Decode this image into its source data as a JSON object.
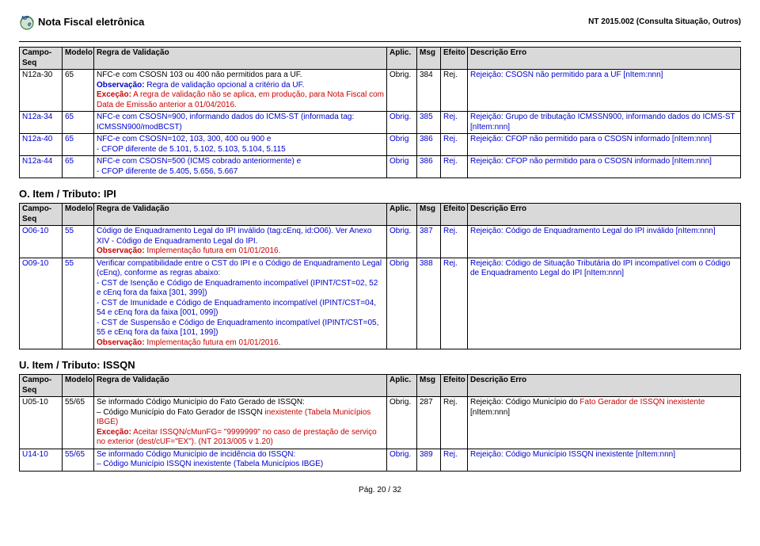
{
  "header": {
    "title": "Nota Fiscal eletrônica",
    "subtitle": "NT 2015.002 (Consulta Situação, Outros)"
  },
  "table1": {
    "headers": [
      "Campo-Seq",
      "Modelo",
      "Regra de Validação",
      "Aplic.",
      "Msg",
      "Efeito",
      "Descrição Erro"
    ],
    "rows": [
      {
        "seq": "N12a-30",
        "mod": "65",
        "reg": "NFC-e com CSOSN 103 ou 400 não permitidos para a UF.\nObservação: Regra de validação opcional a critério da UF.\nExceção: A regra de validação não se aplica, em produção, para Nota Fiscal com Data de Emissão anterior a 01/04/2016.",
        "apl": "Obrig.",
        "msg": "384",
        "efe": "Rej.",
        "desc": "Rejeição: CSOSN não permitido para a UF [nItem:nnn]",
        "reg_style": "black-blue-red",
        "desc_style": "blue"
      },
      {
        "seq": "N12a-34",
        "mod": "65",
        "reg": "NFC-e com CSOSN=900, informando dados do ICMS-ST (informada tag: ICMSSN900/modBCST)",
        "apl": "Obrig.",
        "msg": "385",
        "efe": "Rej.",
        "desc": "Rejeição: Grupo de tributação ICMSSN900, informando dados do ICMS-ST [nItem:nnn]",
        "reg_style": "blue",
        "desc_style": "blue"
      },
      {
        "seq": "N12a-40",
        "mod": "65",
        "reg": "NFC-e com CSOSN=102, 103, 300, 400 ou 900 e\n- CFOP diferente de 5.101, 5.102, 5.103, 5.104, 5.115",
        "apl": "Obrig",
        "msg": "386",
        "efe": "Rej.",
        "desc": "Rejeição: CFOP não permitido para o CSOSN informado [nItem:nnn]",
        "reg_style": "blue",
        "desc_style": "blue"
      },
      {
        "seq": "N12a-44",
        "mod": "65",
        "reg": "NFC-e com CSOSN=500 (ICMS cobrado anteriormente) e\n- CFOP diferente de 5.405, 5.656, 5.667",
        "apl": "Obrig",
        "msg": "386",
        "efe": "Rej.",
        "desc": "Rejeição: CFOP não permitido para o CSOSN informado [nItem:nnn]",
        "reg_style": "blue",
        "desc_style": "blue"
      }
    ]
  },
  "sectionO": {
    "title": "O. Item / Tributo: IPI",
    "headers": [
      "Campo-Seq",
      "Modelo",
      "Regra de Validação",
      "Aplic.",
      "Msg",
      "Efeito",
      "Descrição Erro"
    ],
    "rows": [
      {
        "seq": "O06-10",
        "mod": "55",
        "reg": "Código de Enquadramento Legal do IPI inválido (tag:cEnq, id:O06). Ver Anexo XIV - Código de Enquadramento Legal do IPI.\nObservação: Implementação futura em 01/01/2016.",
        "apl": "Obrig.",
        "msg": "387",
        "efe": "Rej.",
        "desc": "Rejeição: Código de Enquadramento Legal do IPI inválido [nItem:nnn]",
        "reg_style": "blue-red",
        "desc_style": "blue"
      },
      {
        "seq": "O09-10",
        "mod": "55",
        "reg": "Verificar compatibilidade entre o CST do IPI e o Código de Enquadramento Legal (cEnq), conforme as regras abaixo:\n- CST de Isenção e Código de Enquadramento incompatível (IPINT/CST=02, 52 e cEnq fora da faixa [301, 399])\n- CST de Imunidade e Código de Enquadramento incompatível (IPINT/CST=04, 54 e cEnq fora da faixa [001, 099])\n- CST de Suspensão e Código de Enquadramento incompatível (IPINT/CST=05, 55 e cEnq fora da faixa [101, 199])\nObservação: Implementação futura em 01/01/2016.",
        "apl": "Obrig",
        "msg": "388",
        "efe": "Rej.",
        "desc": "Rejeição: Código de Situação Tributária do IPI incompatível com o Código de Enquadramento Legal do IPI [nItem:nnn]",
        "reg_style": "blue-red2",
        "desc_style": "blue"
      }
    ]
  },
  "sectionU": {
    "title": "U. Item / Tributo: ISSQN",
    "headers": [
      "Campo-Seq",
      "Modelo",
      "Regra de Validação",
      "Aplic.",
      "Msg",
      "Efeito",
      "Descrição Erro"
    ],
    "rows": [
      {
        "seq": "U05-10",
        "mod": "55/65",
        "reg": "Se informado Código Município do Fato Gerado de ISSQN:\n– Código Município do Fato Gerador de ISSQN inexistente (Tabela Municípios IBGE)\nExceção: Aceitar ISSQN/cMunFG= \"9999999\" no caso de prestação de serviço no exterior (dest/cUF=\"EX\"). (NT 2013/005 v 1.20)",
        "apl": "Obrig.",
        "msg": "287",
        "efe": "Rej.",
        "desc": "Rejeição: Código Município do Fato Gerador de ISSQN inexistente [nItem:nnn]",
        "reg_style": "u05",
        "desc_style": "black-red"
      },
      {
        "seq": "U14-10",
        "mod": "55/65",
        "reg": "Se informado Código Município de incidência do ISSQN:\n– Código Município ISSQN inexistente (Tabela Municípios IBGE)",
        "apl": "Obrig.",
        "msg": "389",
        "efe": "Rej.",
        "desc": "Rejeição: Código Município ISSQN inexistente [nItem:nnn]",
        "reg_style": "blue",
        "desc_style": "blue"
      }
    ]
  },
  "footer": "Pág. 20 / 32"
}
